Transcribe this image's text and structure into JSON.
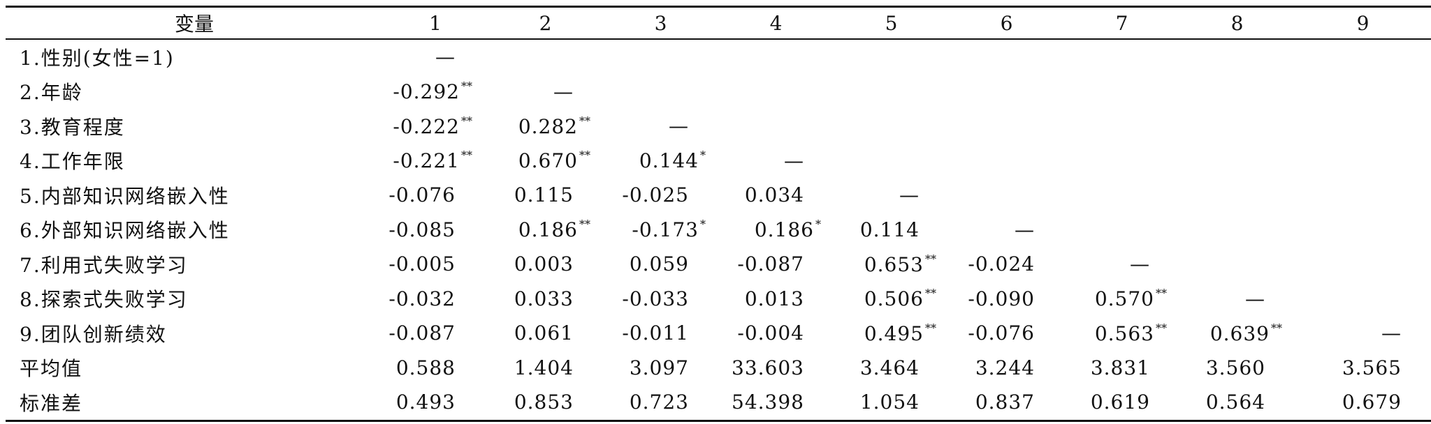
{
  "table": {
    "headers": [
      "变量",
      "1",
      "2",
      "3",
      "4",
      "5",
      "6",
      "7",
      "8",
      "9"
    ],
    "rows": [
      {
        "label": "1.性别(女性=1)",
        "cells": [
          [
            "—",
            ""
          ],
          [
            "",
            ""
          ],
          [
            "",
            ""
          ],
          [
            "",
            ""
          ],
          [
            "",
            ""
          ],
          [
            "",
            ""
          ],
          [
            "",
            ""
          ],
          [
            "",
            ""
          ],
          [
            "",
            ""
          ]
        ]
      },
      {
        "label": "2.年龄",
        "cells": [
          [
            "-0.292",
            "**"
          ],
          [
            "—",
            ""
          ],
          [
            "",
            ""
          ],
          [
            "",
            ""
          ],
          [
            "",
            ""
          ],
          [
            "",
            ""
          ],
          [
            "",
            ""
          ],
          [
            "",
            ""
          ],
          [
            "",
            ""
          ]
        ]
      },
      {
        "label": "3.教育程度",
        "cells": [
          [
            "-0.222",
            "**"
          ],
          [
            "0.282",
            "**"
          ],
          [
            "—",
            ""
          ],
          [
            "",
            ""
          ],
          [
            "",
            ""
          ],
          [
            "",
            ""
          ],
          [
            "",
            ""
          ],
          [
            "",
            ""
          ],
          [
            "",
            ""
          ]
        ]
      },
      {
        "label": "4.工作年限",
        "cells": [
          [
            "-0.221",
            "**"
          ],
          [
            "0.670",
            "**"
          ],
          [
            "0.144",
            "*"
          ],
          [
            "—",
            ""
          ],
          [
            "",
            ""
          ],
          [
            "",
            ""
          ],
          [
            "",
            ""
          ],
          [
            "",
            ""
          ],
          [
            "",
            ""
          ]
        ]
      },
      {
        "label": "5.内部知识网络嵌入性",
        "cells": [
          [
            "-0.076",
            ""
          ],
          [
            "0.115",
            ""
          ],
          [
            "-0.025",
            ""
          ],
          [
            "0.034",
            ""
          ],
          [
            "—",
            ""
          ],
          [
            "",
            ""
          ],
          [
            "",
            ""
          ],
          [
            "",
            ""
          ],
          [
            "",
            ""
          ]
        ]
      },
      {
        "label": "6.外部知识网络嵌入性",
        "cells": [
          [
            "-0.085",
            ""
          ],
          [
            "0.186",
            "**"
          ],
          [
            "-0.173",
            "*"
          ],
          [
            "0.186",
            "*"
          ],
          [
            "0.114",
            ""
          ],
          [
            "—",
            ""
          ],
          [
            "",
            ""
          ],
          [
            "",
            ""
          ],
          [
            "",
            ""
          ]
        ]
      },
      {
        "label": "7.利用式失败学习",
        "cells": [
          [
            "-0.005",
            ""
          ],
          [
            "0.003",
            ""
          ],
          [
            "0.059",
            ""
          ],
          [
            "-0.087",
            ""
          ],
          [
            "0.653",
            "**"
          ],
          [
            "-0.024",
            ""
          ],
          [
            "—",
            ""
          ],
          [
            "",
            ""
          ],
          [
            "",
            ""
          ]
        ]
      },
      {
        "label": "8.探索式失败学习",
        "cells": [
          [
            "-0.032",
            ""
          ],
          [
            "0.033",
            ""
          ],
          [
            "-0.033",
            ""
          ],
          [
            "0.013",
            ""
          ],
          [
            "0.506",
            "**"
          ],
          [
            "-0.090",
            ""
          ],
          [
            "0.570",
            "**"
          ],
          [
            "—",
            ""
          ],
          [
            "",
            ""
          ]
        ]
      },
      {
        "label": "9.团队创新绩效",
        "cells": [
          [
            "-0.087",
            ""
          ],
          [
            "0.061",
            ""
          ],
          [
            "-0.011",
            ""
          ],
          [
            "-0.004",
            ""
          ],
          [
            "0.495",
            "**"
          ],
          [
            "-0.076",
            ""
          ],
          [
            "0.563",
            "**"
          ],
          [
            "0.639",
            "**"
          ],
          [
            "—",
            ""
          ]
        ]
      },
      {
        "label": "平均值",
        "cells": [
          [
            "0.588",
            ""
          ],
          [
            "1.404",
            ""
          ],
          [
            "3.097",
            ""
          ],
          [
            "33.603",
            ""
          ],
          [
            "3.464",
            ""
          ],
          [
            "3.244",
            ""
          ],
          [
            "3.831",
            ""
          ],
          [
            "3.560",
            ""
          ],
          [
            "3.565",
            ""
          ]
        ]
      },
      {
        "label": "标准差",
        "cells": [
          [
            "0.493",
            ""
          ],
          [
            "0.853",
            ""
          ],
          [
            "0.723",
            ""
          ],
          [
            "54.398",
            ""
          ],
          [
            "1.054",
            ""
          ],
          [
            "0.837",
            ""
          ],
          [
            "0.619",
            ""
          ],
          [
            "0.564",
            ""
          ],
          [
            "0.679",
            ""
          ]
        ]
      }
    ]
  }
}
